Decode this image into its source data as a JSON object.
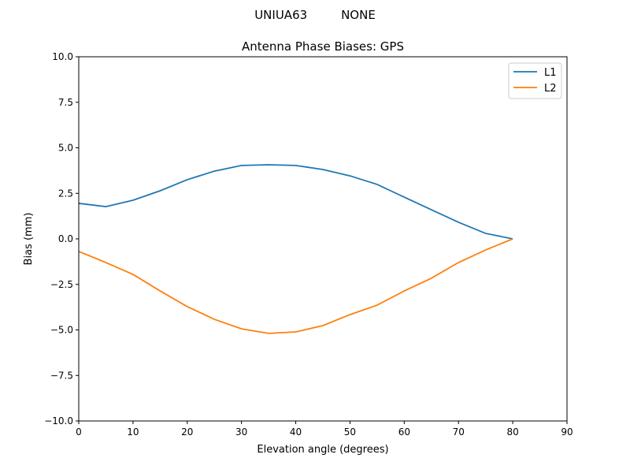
{
  "chart_data": {
    "type": "line",
    "suptitle": "UNIUA63         NONE",
    "title": "Antenna Phase Biases: GPS",
    "xlabel": "Elevation angle (degrees)",
    "ylabel": "Bias (mm)",
    "xlim": [
      0,
      90
    ],
    "ylim": [
      -10,
      10
    ],
    "xticks": [
      0,
      10,
      20,
      30,
      40,
      50,
      60,
      70,
      80,
      90
    ],
    "xtick_labels": [
      "0",
      "10",
      "20",
      "30",
      "40",
      "50",
      "60",
      "70",
      "80",
      "90"
    ],
    "yticks": [
      -10,
      -7.5,
      -5,
      -2.5,
      0,
      2.5,
      5,
      7.5,
      10
    ],
    "ytick_labels": [
      "−10.0",
      "−7.5",
      "−5.0",
      "−2.5",
      "0.0",
      "2.5",
      "5.0",
      "7.5",
      "10.0"
    ],
    "grid": false,
    "legend_position": "top-right",
    "x": [
      0,
      5,
      10,
      15,
      20,
      25,
      30,
      35,
      40,
      45,
      50,
      55,
      60,
      65,
      70,
      75,
      80
    ],
    "series": [
      {
        "name": "L1",
        "color": "#1f77b4",
        "values": [
          1.95,
          1.77,
          2.12,
          2.64,
          3.25,
          3.72,
          4.03,
          4.07,
          4.03,
          3.81,
          3.46,
          2.99,
          2.29,
          1.6,
          0.91,
          0.3,
          0.0
        ]
      },
      {
        "name": "L2",
        "color": "#ff7f0e",
        "values": [
          -0.69,
          -1.3,
          -1.95,
          -2.86,
          -3.72,
          -4.42,
          -4.94,
          -5.19,
          -5.11,
          -4.76,
          -4.16,
          -3.64,
          -2.86,
          -2.16,
          -1.3,
          -0.61,
          0.0
        ]
      }
    ]
  }
}
